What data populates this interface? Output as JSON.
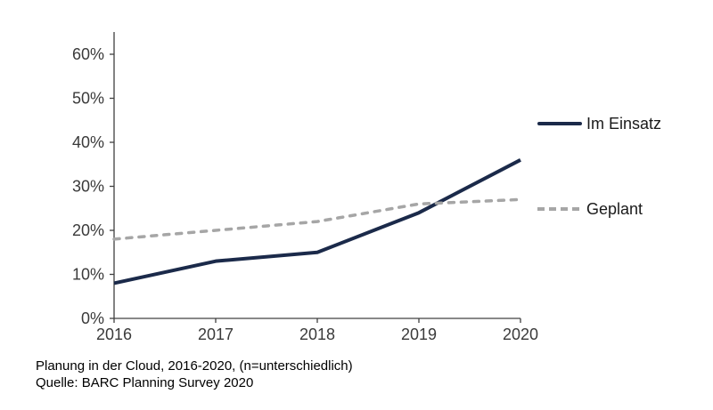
{
  "chart_data": {
    "type": "line",
    "title": "",
    "xlabel": "",
    "ylabel": "",
    "categories": [
      "2016",
      "2017",
      "2018",
      "2019",
      "2020"
    ],
    "series": [
      {
        "name": "Im Einsatz",
        "values": [
          8,
          13,
          15,
          24,
          36
        ],
        "color": "#1b2a4a",
        "style": "solid"
      },
      {
        "name": "Geplant",
        "values": [
          18,
          20,
          22,
          26,
          27
        ],
        "color": "#a6a6a6",
        "style": "dashed"
      }
    ],
    "ylim": [
      0,
      60
    ],
    "ytick_step": 10,
    "ytick_labels": [
      "0%",
      "10%",
      "20%",
      "30%",
      "40%",
      "50%",
      "60%"
    ],
    "grid": false,
    "legend_position": "right"
  },
  "caption": {
    "line1": "Planung in der Cloud, 2016-2020, (n=unterschiedlich)",
    "line2": "Quelle: BARC Planning Survey 2020"
  },
  "colors": {
    "axis": "#404040",
    "tick_text": "#3a3a3a",
    "background": "#ffffff"
  }
}
